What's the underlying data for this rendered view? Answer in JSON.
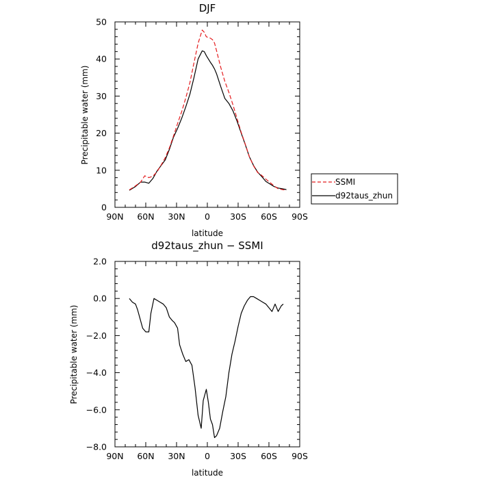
{
  "chart_data": [
    {
      "type": "line",
      "title": "DJF",
      "xlabel": "latitude",
      "ylabel": "Precipitable water (mm)",
      "xlim": [
        -90,
        90
      ],
      "ylim": [
        0,
        50
      ],
      "x_ticks": [
        -90,
        -60,
        -30,
        0,
        30,
        60,
        90
      ],
      "x_tick_labels": [
        "90N",
        "60N",
        "30N",
        "0",
        "30S",
        "60S",
        "90S"
      ],
      "y_ticks": [
        0,
        10,
        20,
        30,
        40,
        50
      ],
      "y_tick_labels": [
        "0",
        "10",
        "20",
        "30",
        "40",
        "50"
      ],
      "legend_position": "right",
      "series": [
        {
          "name": "SSMI",
          "color": "#e41a1c",
          "dash": true,
          "x": [
            -76,
            -70,
            -65,
            -61,
            -57,
            -53,
            -49,
            -45,
            -41,
            -37,
            -33,
            -29,
            -25,
            -21,
            -17,
            -13,
            -9,
            -5,
            -3,
            -1,
            1,
            3,
            5,
            7,
            9,
            13,
            17,
            21,
            25,
            29,
            33,
            37,
            41,
            45,
            49,
            53,
            57,
            61,
            65,
            69,
            73,
            77
          ],
          "y": [
            4.7,
            5.8,
            6.8,
            8.5,
            8.0,
            8.4,
            9.6,
            11.4,
            13.4,
            16.0,
            19.2,
            22.6,
            25.8,
            29.5,
            33.6,
            39.0,
            44.2,
            47.8,
            47.2,
            46.0,
            45.8,
            45.6,
            45.2,
            44.3,
            42.2,
            37.8,
            34.0,
            31.0,
            27.6,
            23.9,
            20.2,
            17.0,
            13.6,
            11.2,
            9.4,
            8.6,
            7.6,
            6.7,
            5.8,
            5.0,
            4.8,
            4.6
          ]
        },
        {
          "name": "d92taus_zhun",
          "color": "#000000",
          "dash": false,
          "x": [
            -76,
            -70,
            -65,
            -61,
            -57,
            -53,
            -49,
            -45,
            -41,
            -37,
            -33,
            -29,
            -25,
            -21,
            -17,
            -13,
            -9,
            -5,
            -3,
            -1,
            1,
            3,
            5,
            7,
            9,
            13,
            17,
            21,
            25,
            29,
            33,
            37,
            41,
            45,
            49,
            53,
            57,
            61,
            65,
            69,
            73,
            77
          ],
          "y": [
            4.6,
            5.6,
            6.8,
            6.8,
            6.5,
            7.8,
            9.8,
            11.3,
            12.8,
            15.6,
            18.9,
            21.3,
            24.0,
            27.1,
            30.5,
            35.0,
            40.0,
            42.2,
            42.0,
            40.9,
            40.0,
            39.1,
            38.3,
            37.3,
            36.0,
            32.6,
            29.4,
            28.0,
            26.0,
            23.2,
            20.0,
            16.9,
            13.6,
            11.3,
            9.5,
            8.3,
            7.0,
            6.3,
            5.6,
            5.2,
            5.0,
            4.8
          ]
        }
      ]
    },
    {
      "type": "line",
      "title": "d92taus_zhun − SSMI",
      "xlabel": "latitude",
      "ylabel": "Precipitable water (mm)",
      "xlim": [
        -90,
        90
      ],
      "ylim": [
        -8,
        2
      ],
      "x_ticks": [
        -90,
        -60,
        -30,
        0,
        30,
        60,
        90
      ],
      "x_tick_labels": [
        "90N",
        "60N",
        "30N",
        "0",
        "30S",
        "60S",
        "90S"
      ],
      "y_ticks": [
        -8,
        -6,
        -4,
        -2,
        0,
        2
      ],
      "y_tick_labels": [
        "−8.0",
        "−6.0",
        "−4.0",
        "−2.0",
        "0.0",
        "2.0"
      ],
      "series": [
        {
          "color": "#000000",
          "dash": false,
          "x": [
            -76,
            -73,
            -70,
            -68,
            -66,
            -63,
            -60,
            -57,
            -55,
            -52,
            -49,
            -46,
            -43,
            -40,
            -37,
            -34,
            -32,
            -29,
            -27,
            -24,
            -21,
            -18,
            -15,
            -12,
            -9,
            -6,
            -4,
            -1,
            1,
            3,
            5,
            7,
            9,
            12,
            15,
            18,
            21,
            24,
            27,
            30,
            33,
            36,
            39,
            42,
            45,
            48,
            51,
            54,
            57,
            60,
            63,
            66,
            69,
            72,
            74
          ],
          "y": [
            0.0,
            -0.2,
            -0.3,
            -0.6,
            -1.0,
            -1.6,
            -1.8,
            -1.8,
            -0.8,
            0.0,
            -0.1,
            -0.2,
            -0.3,
            -0.5,
            -1.0,
            -1.2,
            -1.3,
            -1.6,
            -2.5,
            -3.0,
            -3.4,
            -3.3,
            -3.6,
            -4.8,
            -6.3,
            -7.0,
            -5.5,
            -4.9,
            -5.6,
            -6.5,
            -6.8,
            -7.5,
            -7.4,
            -7.0,
            -6.1,
            -5.3,
            -4.0,
            -3.0,
            -2.3,
            -1.5,
            -0.8,
            -0.4,
            -0.1,
            0.1,
            0.1,
            0.0,
            -0.1,
            -0.2,
            -0.3,
            -0.5,
            -0.7,
            -0.3,
            -0.7,
            -0.4,
            -0.3
          ]
        }
      ]
    }
  ]
}
